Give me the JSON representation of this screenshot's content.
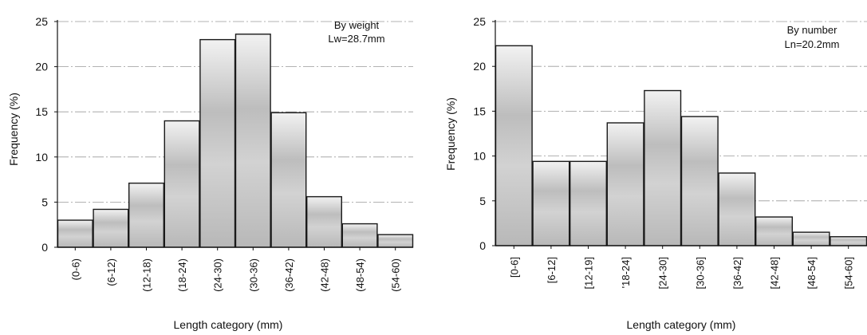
{
  "chart_data": [
    {
      "type": "bar",
      "title": "",
      "xlabel": "Length category (mm)",
      "ylabel": "Frequency (%)",
      "ylim": [
        0,
        25
      ],
      "yticks": [
        0,
        5,
        10,
        15,
        20,
        25
      ],
      "grid": true,
      "annotation_lines": [
        "By weight",
        "Lw=28.7mm"
      ],
      "categories": [
        "(0-6)",
        "(6-12)",
        "(12-18)",
        "(18-24)",
        "(24-30)",
        "(30-36)",
        "(36-42)",
        "(42-48)",
        "(48-54)",
        "(54-60)"
      ],
      "values": [
        3,
        4.2,
        7.1,
        14,
        23,
        23.6,
        14.9,
        5.6,
        2.6,
        1.4
      ]
    },
    {
      "type": "bar",
      "title": "",
      "xlabel": "Length category (mm)",
      "ylabel": "Frequency (%)",
      "ylim": [
        0,
        25
      ],
      "yticks": [
        0,
        5,
        10,
        15,
        20,
        25
      ],
      "grid": true,
      "annotation_lines": [
        "By number",
        "Ln=20.2mm"
      ],
      "categories": [
        "[0-6]",
        "[6-12]",
        "[12-19]",
        "'18-24]",
        "[24-30]",
        "[30-36]",
        "[36-42]",
        "[42-48]",
        "[48-54]",
        "[54-60]"
      ],
      "values": [
        22.3,
        9.4,
        9.4,
        13.7,
        17.3,
        14.4,
        8.1,
        3.2,
        1.5,
        1
      ]
    }
  ],
  "colors": {
    "bar_edge": "#1a1a1a",
    "bar_fill": "#c4c4c4",
    "bar_fill_light": "#ececec",
    "gridline": "#9a9a9a",
    "axis": "#111111",
    "text": "#111111"
  }
}
